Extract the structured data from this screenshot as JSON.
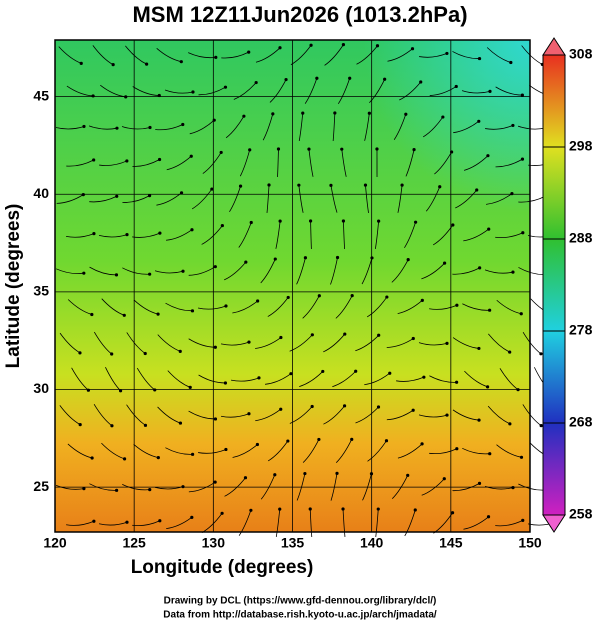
{
  "map": {
    "title": "MSM 12Z11Jun2026 (1013.2hPa)",
    "xlabel": "Longitude (degrees)",
    "ylabel": "Latitude  (degrees)",
    "xlim": [
      120,
      150
    ],
    "ylim": [
      22.7,
      47.9
    ],
    "xticks": [
      120,
      125,
      130,
      135,
      140,
      145,
      150
    ],
    "yticks": [
      25,
      30,
      35,
      40,
      45
    ],
    "colorbar": {
      "lim": [
        258,
        308
      ],
      "ticks": [
        258,
        268,
        278,
        288,
        298,
        308
      ]
    },
    "credits": [
      "Drawing by DCL (https://www.gfd-dennou.org/library/dcl/)",
      "Data from http://database.rish.kyoto-u.ac.jp/arch/jmadata/"
    ]
  }
}
